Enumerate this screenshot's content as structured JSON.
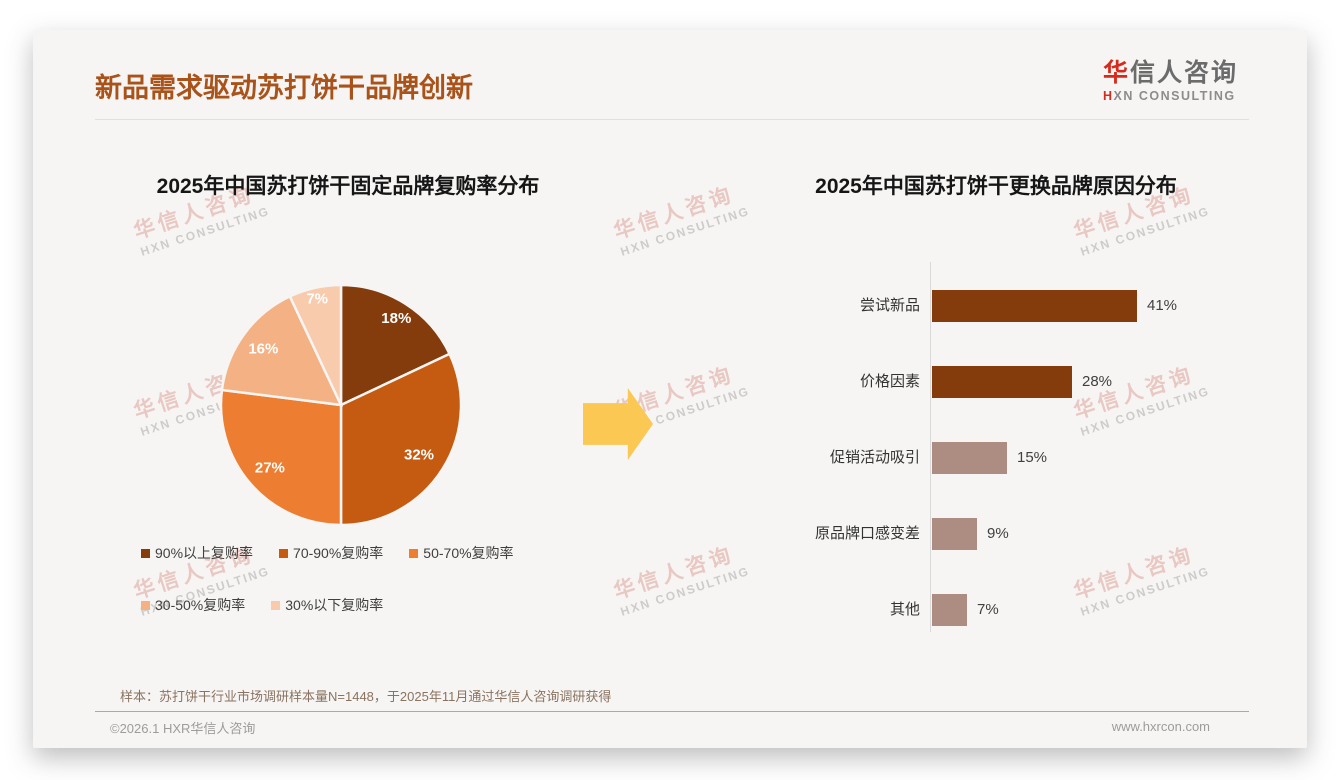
{
  "page": {
    "title": "新品需求驱动苏打饼干品牌创新",
    "logo": {
      "cn_accent": "华",
      "cn_rest": "信人咨询",
      "en_accent": "H",
      "en_rest": "XN CONSULTING"
    },
    "watermark": {
      "line1": "华信人咨询",
      "line2": "HXN CONSULTING"
    },
    "footer": {
      "note": "样本：苏打饼干行业市场调研样本量N=1448，于2025年11月通过华信人咨询调研获得",
      "copyright": "©2026.1 HXR华信人咨询",
      "website": "www.hxrcon.com"
    },
    "colors": {
      "title_accent": "#A9531A",
      "arrow": "#FBC853",
      "axis": "#D9D9D9",
      "card_bg": "#F6F5F3"
    }
  },
  "chart_data": [
    {
      "type": "pie",
      "title": "2025年中国苏打饼干固定品牌复购率分布",
      "labels": [
        "90%以上复购率",
        "70-90%复购率",
        "50-70%复购率",
        "30-50%复购率",
        "30%以下复购率"
      ],
      "values": [
        18,
        32,
        27,
        16,
        7
      ],
      "data_labels": [
        "18%",
        "32%",
        "27%",
        "16%",
        "7%"
      ],
      "colors": [
        "#843C0C",
        "#C55A11",
        "#ED7D31",
        "#F4B183",
        "#F8CBAD"
      ],
      "start_angle_deg": 0,
      "direction": "clockwise",
      "legend_position": "bottom"
    },
    {
      "type": "bar",
      "orientation": "horizontal",
      "title": "2025年中国苏打饼干更换品牌原因分布",
      "categories": [
        "尝试新品",
        "价格因素",
        "促销活动吸引",
        "原品牌口感变差",
        "其他"
      ],
      "values": [
        41,
        28,
        15,
        9,
        7
      ],
      "value_labels": [
        "41%",
        "28%",
        "15%",
        "9%",
        "7%"
      ],
      "colors": [
        "#843C0C",
        "#843C0C",
        "#AD8D82",
        "#AD8D82",
        "#AD8D82"
      ],
      "xlim": [
        0,
        45
      ],
      "grid": false,
      "legend_position": "none"
    }
  ]
}
